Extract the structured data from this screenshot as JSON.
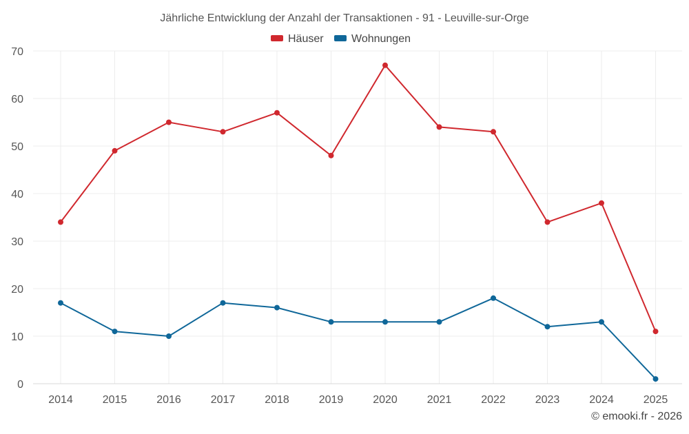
{
  "chart_data": {
    "type": "line",
    "title": "Jährliche Entwicklung der Anzahl der Transaktionen - 91 - Leuville-sur-Orge",
    "xlabel": "",
    "ylabel": "",
    "categories": [
      "2014",
      "2015",
      "2016",
      "2017",
      "2018",
      "2019",
      "2020",
      "2021",
      "2022",
      "2023",
      "2024",
      "2025"
    ],
    "ylim": [
      0,
      70
    ],
    "yticks": [
      0,
      10,
      20,
      30,
      40,
      50,
      60,
      70
    ],
    "grid": true,
    "legend_position": "top-center",
    "series": [
      {
        "name": "Häuser",
        "color": "#d0282e",
        "values": [
          34,
          49,
          55,
          53,
          57,
          48,
          67,
          54,
          53,
          34,
          38,
          11
        ]
      },
      {
        "name": "Wohnungen",
        "color": "#0f6799",
        "values": [
          17,
          11,
          10,
          17,
          16,
          13,
          13,
          13,
          18,
          12,
          13,
          1
        ]
      }
    ]
  },
  "credit": "© emooki.fr - 2026"
}
